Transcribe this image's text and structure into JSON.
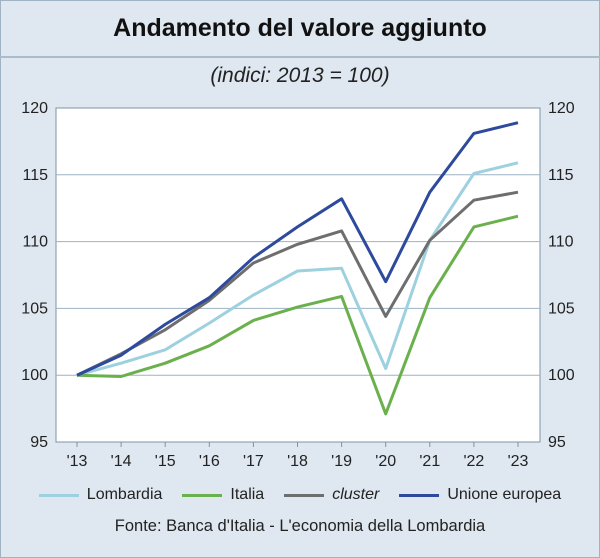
{
  "title": "Andamento del valore aggiunto",
  "subtitle": "(indici: 2013 = 100)",
  "source": "Fonte: Banca d'Italia - L'economia della Lombardia",
  "chart_data": {
    "type": "line",
    "x": [
      "'13",
      "'14",
      "'15",
      "'16",
      "'17",
      "'18",
      "'19",
      "'20",
      "'21",
      "'22",
      "'23"
    ],
    "ylim": [
      95,
      120
    ],
    "yticks": [
      "95",
      "100",
      "105",
      "110",
      "115",
      "120"
    ],
    "grid": true,
    "legend_position": "bottom",
    "series": [
      {
        "name": "Lombardia",
        "color": "#9dd1df",
        "italic": false,
        "values": [
          100,
          100.9,
          101.9,
          103.9,
          106.0,
          107.8,
          108.0,
          100.5,
          110.1,
          115.1,
          115.9
        ]
      },
      {
        "name": "Italia",
        "color": "#6ab04c",
        "italic": false,
        "values": [
          100,
          99.9,
          100.9,
          102.2,
          104.1,
          105.1,
          105.9,
          97.1,
          105.8,
          111.1,
          111.9
        ]
      },
      {
        "name": "cluster",
        "color": "#6e6e6e",
        "italic": true,
        "values": [
          100,
          101.6,
          103.4,
          105.6,
          108.4,
          109.8,
          110.8,
          104.4,
          110.1,
          113.1,
          113.7
        ]
      },
      {
        "name": "Unione europea",
        "color": "#2d4a9c",
        "italic": false,
        "values": [
          100,
          101.5,
          103.8,
          105.8,
          108.8,
          111.1,
          113.2,
          107.0,
          113.7,
          118.1,
          118.9
        ]
      }
    ]
  }
}
